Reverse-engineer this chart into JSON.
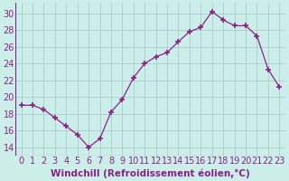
{
  "x": [
    0,
    1,
    2,
    3,
    4,
    5,
    6,
    7,
    8,
    9,
    10,
    11,
    12,
    13,
    14,
    15,
    16,
    17,
    18,
    19,
    20,
    21,
    22,
    23
  ],
  "y": [
    19.0,
    19.0,
    18.5,
    17.5,
    16.5,
    15.5,
    14.0,
    15.0,
    18.2,
    19.7,
    22.3,
    24.0,
    24.8,
    25.3,
    26.6,
    27.8,
    28.3,
    30.2,
    29.2,
    28.5,
    28.5,
    27.3,
    23.3,
    21.2
  ],
  "line_color": "#882288",
  "marker": "+",
  "markersize": 4,
  "bg_color": "#cceee8",
  "grid_color": "#aacccc",
  "xlabel": "Windchill (Refroidissement éolien,°C)",
  "xlabel_color": "#882288",
  "tick_color": "#882288",
  "xlabel_fontsize": 7.5,
  "ylabel_ticks": [
    14,
    16,
    18,
    20,
    22,
    24,
    26,
    28,
    30
  ],
  "xtick_labels": [
    "0",
    "1",
    "2",
    "3",
    "4",
    "5",
    "6",
    "7",
    "8",
    "9",
    "10",
    "11",
    "12",
    "13",
    "14",
    "15",
    "16",
    "17",
    "18",
    "19",
    "20",
    "21",
    "22",
    "23"
  ],
  "xlim": [
    -0.5,
    23.5
  ],
  "ylim": [
    13.0,
    31.2
  ],
  "tick_fontsize": 7.0,
  "linewidth": 0.9
}
